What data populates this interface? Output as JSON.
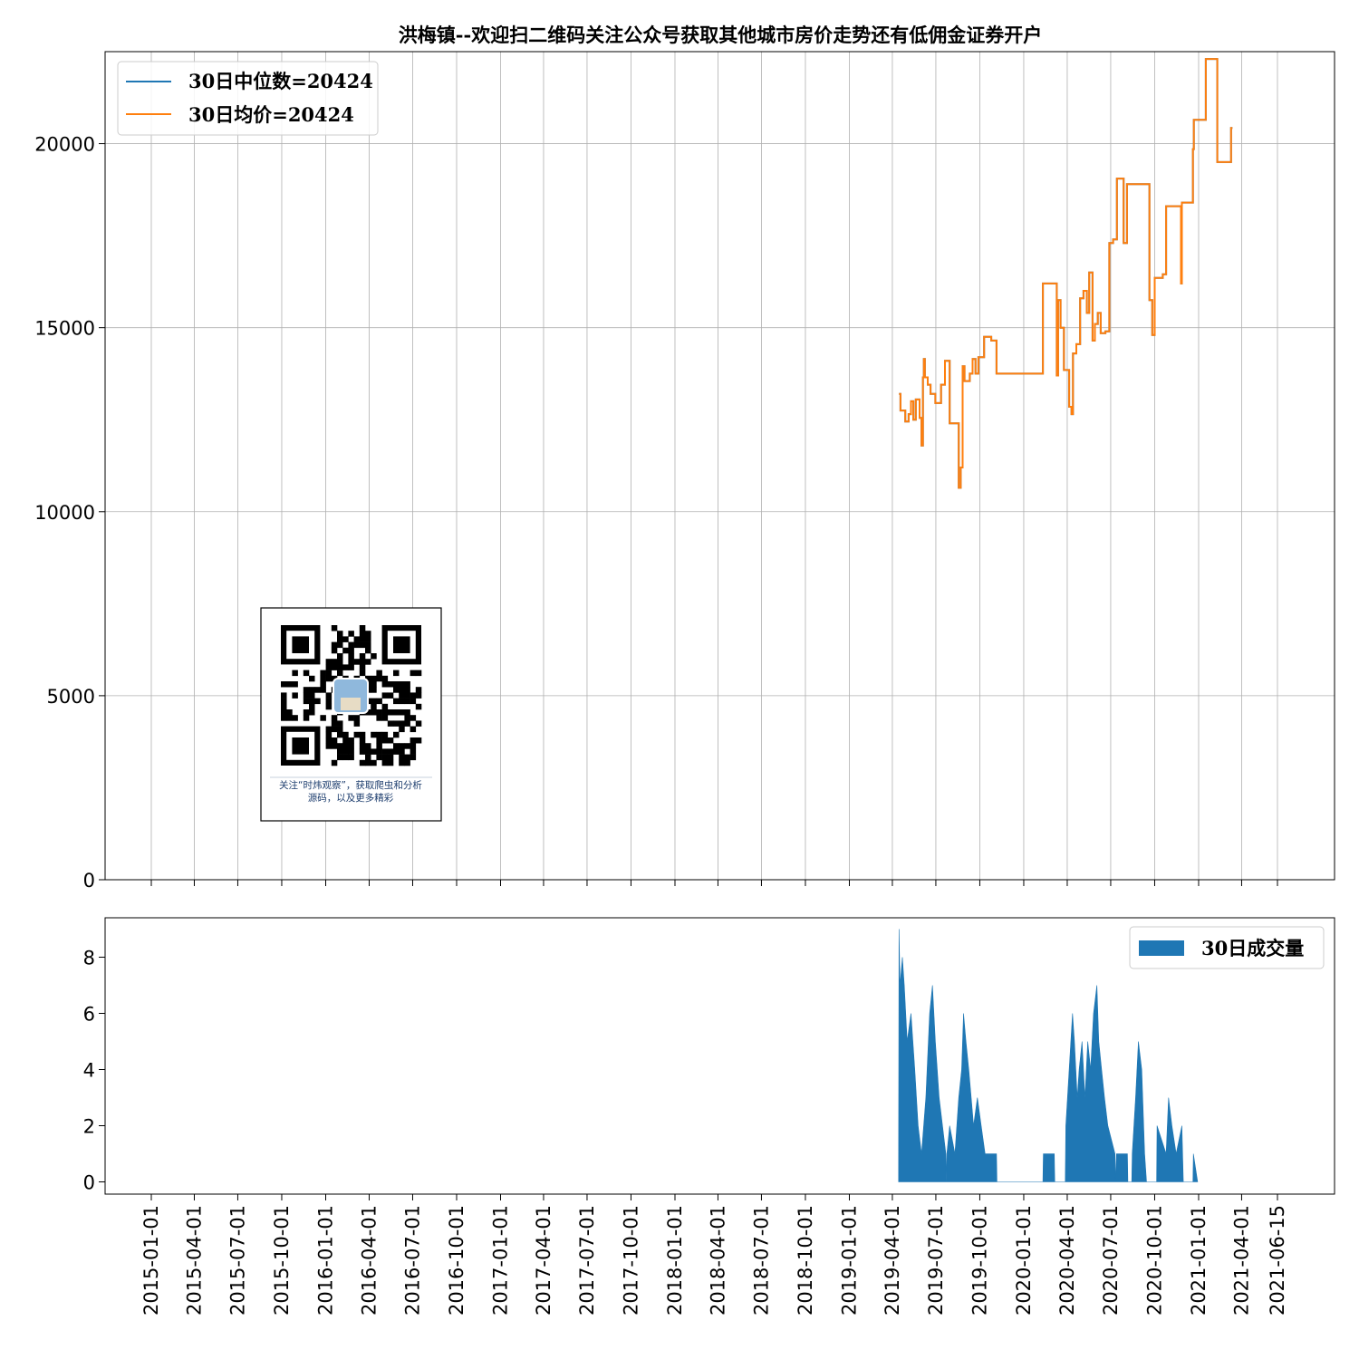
{
  "colors": {
    "median": "#1f77b4",
    "mean": "#ff7f0e",
    "volume": "#1f77b4",
    "grid": "#b0b0b0"
  },
  "chart_data": [
    {
      "type": "line",
      "title": "洪梅镇--欢迎扫二维码关注公众号获取其他城市房价走势还有低佣金证券开户",
      "ylim": [
        0,
        22500
      ],
      "yticks": [
        0,
        5000,
        10000,
        15000,
        20000
      ],
      "grid": true,
      "legend_position": "top-left",
      "series": [
        {
          "name": "30日中位数=20424",
          "points": [
            [
              "2019-04-15",
              13200
            ],
            [
              "2019-04-18",
              12750
            ],
            [
              "2019-04-25",
              12750
            ],
            [
              "2019-04-28",
              12450
            ],
            [
              "2019-05-05",
              12650
            ],
            [
              "2019-05-10",
              13000
            ],
            [
              "2019-05-15",
              12500
            ],
            [
              "2019-05-20",
              13050
            ],
            [
              "2019-05-28",
              12550
            ],
            [
              "2019-06-01",
              11800
            ],
            [
              "2019-06-04",
              13650
            ],
            [
              "2019-06-06",
              14150
            ],
            [
              "2019-06-08",
              13650
            ],
            [
              "2019-06-14",
              13450
            ],
            [
              "2019-06-20",
              13200
            ],
            [
              "2019-06-30",
              12950
            ],
            [
              "2019-07-12",
              13450
            ],
            [
              "2019-07-20",
              14100
            ],
            [
              "2019-07-30",
              12400
            ],
            [
              "2019-08-18",
              10650
            ],
            [
              "2019-08-22",
              11200
            ],
            [
              "2019-08-26",
              13950
            ],
            [
              "2019-08-30",
              13550
            ],
            [
              "2019-09-10",
              13750
            ],
            [
              "2019-09-16",
              14150
            ],
            [
              "2019-09-22",
              13750
            ],
            [
              "2019-09-28",
              14200
            ],
            [
              "2019-10-10",
              14750
            ],
            [
              "2019-10-25",
              14650
            ],
            [
              "2019-11-05",
              13750
            ],
            [
              "2020-02-10",
              16200
            ],
            [
              "2020-03-10",
              13700
            ],
            [
              "2020-03-13",
              15750
            ],
            [
              "2020-03-18",
              15000
            ],
            [
              "2020-03-25",
              13850
            ],
            [
              "2020-04-05",
              12850
            ],
            [
              "2020-04-10",
              12650
            ],
            [
              "2020-04-13",
              14300
            ],
            [
              "2020-04-20",
              14550
            ],
            [
              "2020-04-28",
              15800
            ],
            [
              "2020-05-05",
              16000
            ],
            [
              "2020-05-12",
              15400
            ],
            [
              "2020-05-17",
              16500
            ],
            [
              "2020-05-24",
              14650
            ],
            [
              "2020-05-29",
              15100
            ],
            [
              "2020-06-04",
              15400
            ],
            [
              "2020-06-10",
              14850
            ],
            [
              "2020-06-20",
              14900
            ],
            [
              "2020-06-28",
              17300
            ],
            [
              "2020-07-06",
              17400
            ],
            [
              "2020-07-14",
              19050
            ],
            [
              "2020-07-28",
              17300
            ],
            [
              "2020-08-04",
              18900
            ],
            [
              "2020-09-20",
              15750
            ],
            [
              "2020-09-26",
              14800
            ],
            [
              "2020-10-01",
              16350
            ],
            [
              "2020-10-18",
              16450
            ],
            [
              "2020-10-25",
              18300
            ],
            [
              "2020-11-25",
              16200
            ],
            [
              "2020-11-27",
              18400
            ],
            [
              "2020-12-20",
              19850
            ],
            [
              "2020-12-22",
              20650
            ],
            [
              "2021-01-16",
              22300
            ],
            [
              "2021-02-09",
              19500
            ],
            [
              "2021-03-10",
              20424
            ]
          ]
        },
        {
          "name": "30日均价=20424",
          "same_as": "30日中位数=20424"
        }
      ]
    },
    {
      "type": "area",
      "ylim": [
        -0.5,
        9
      ],
      "yticks": [
        0,
        2,
        4,
        6,
        8
      ],
      "xticks": [
        "2015-01-01",
        "2015-04-01",
        "2015-07-01",
        "2015-10-01",
        "2016-01-01",
        "2016-04-01",
        "2016-07-01",
        "2016-10-01",
        "2017-01-01",
        "2017-04-01",
        "2017-07-01",
        "2017-10-01",
        "2018-01-01",
        "2018-04-01",
        "2018-07-01",
        "2018-10-01",
        "2019-01-01",
        "2019-04-01",
        "2019-07-01",
        "2019-10-01",
        "2020-01-01",
        "2020-04-01",
        "2020-07-01",
        "2020-10-01",
        "2021-01-01",
        "2021-04-01",
        "2021-06-15"
      ],
      "legend_position": "top-right",
      "series": [
        {
          "name": "30日成交量",
          "points": [
            [
              "2019-04-14",
              0
            ],
            [
              "2019-04-15",
              9
            ],
            [
              "2019-04-17",
              7
            ],
            [
              "2019-04-22",
              8
            ],
            [
              "2019-04-26",
              7
            ],
            [
              "2019-05-02",
              5
            ],
            [
              "2019-05-10",
              6
            ],
            [
              "2019-05-18",
              4
            ],
            [
              "2019-05-25",
              2
            ],
            [
              "2019-06-01",
              1
            ],
            [
              "2019-06-10",
              3
            ],
            [
              "2019-06-18",
              6
            ],
            [
              "2019-06-24",
              7
            ],
            [
              "2019-06-30",
              5
            ],
            [
              "2019-07-08",
              3
            ],
            [
              "2019-07-15",
              2
            ],
            [
              "2019-07-22",
              1
            ],
            [
              "2019-07-23",
              0
            ],
            [
              "2019-07-24",
              1
            ],
            [
              "2019-07-30",
              2
            ],
            [
              "2019-08-10",
              1
            ],
            [
              "2019-08-18",
              3
            ],
            [
              "2019-08-24",
              4
            ],
            [
              "2019-08-28",
              6
            ],
            [
              "2019-09-02",
              5
            ],
            [
              "2019-09-08",
              4
            ],
            [
              "2019-09-18",
              2
            ],
            [
              "2019-09-26",
              3
            ],
            [
              "2019-10-04",
              2
            ],
            [
              "2019-10-12",
              1
            ],
            [
              "2019-11-05",
              1
            ],
            [
              "2019-11-06",
              0
            ],
            [
              "2020-02-10",
              0
            ],
            [
              "2020-02-11",
              1
            ],
            [
              "2020-03-05",
              1
            ],
            [
              "2020-03-06",
              0
            ],
            [
              "2020-03-28",
              0
            ],
            [
              "2020-03-29",
              2
            ],
            [
              "2020-04-05",
              4
            ],
            [
              "2020-04-12",
              6
            ],
            [
              "2020-04-16",
              5
            ],
            [
              "2020-04-22",
              3
            ],
            [
              "2020-04-26",
              4
            ],
            [
              "2020-05-02",
              5
            ],
            [
              "2020-05-08",
              3
            ],
            [
              "2020-05-14",
              5
            ],
            [
              "2020-05-20",
              4
            ],
            [
              "2020-05-26",
              6
            ],
            [
              "2020-06-02",
              7
            ],
            [
              "2020-06-06",
              5
            ],
            [
              "2020-06-12",
              4
            ],
            [
              "2020-06-18",
              3
            ],
            [
              "2020-06-25",
              2
            ],
            [
              "2020-07-10",
              1
            ],
            [
              "2020-07-11",
              0
            ],
            [
              "2020-07-13",
              1
            ],
            [
              "2020-08-05",
              1
            ],
            [
              "2020-08-06",
              0
            ],
            [
              "2020-08-14",
              0
            ],
            [
              "2020-08-15",
              1
            ],
            [
              "2020-08-22",
              3
            ],
            [
              "2020-08-28",
              5
            ],
            [
              "2020-09-04",
              4
            ],
            [
              "2020-09-10",
              1
            ],
            [
              "2020-09-14",
              0
            ],
            [
              "2020-10-05",
              0
            ],
            [
              "2020-10-06",
              2
            ],
            [
              "2020-10-25",
              1
            ],
            [
              "2020-10-30",
              3
            ],
            [
              "2020-11-06",
              2
            ],
            [
              "2020-11-15",
              1
            ],
            [
              "2020-11-27",
              2
            ],
            [
              "2020-11-30",
              0
            ],
            [
              "2020-12-20",
              0
            ],
            [
              "2020-12-21",
              1
            ],
            [
              "2020-12-30",
              0
            ]
          ]
        }
      ]
    }
  ],
  "qr_caption": [
    "关注“时炜观察”，获取爬虫和分析",
    "源码，以及更多精彩"
  ]
}
